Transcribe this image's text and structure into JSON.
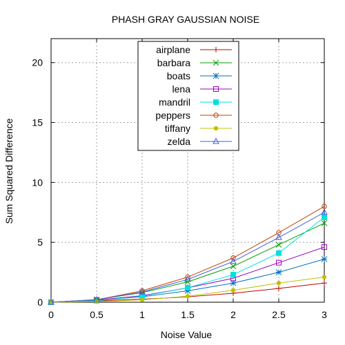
{
  "chart_data": {
    "type": "line",
    "title": "PHASH GRAY GAUSSIAN NOISE",
    "xlabel": "Noise Value",
    "ylabel": "Sum Squared Difference",
    "xlim": [
      0,
      3
    ],
    "ylim": [
      0,
      22
    ],
    "x": [
      0,
      0.5,
      1,
      1.5,
      2,
      2.5,
      3
    ],
    "xticks": [
      0,
      0.5,
      1,
      1.5,
      2,
      2.5,
      3
    ],
    "yticks": [
      0,
      5,
      10,
      15,
      20
    ],
    "xtick_labels": [
      "0",
      "0.5",
      "1",
      "1.5",
      "2",
      "2.5",
      "3"
    ],
    "ytick_labels": [
      "0",
      "5",
      "10",
      "15",
      "20"
    ],
    "grid": true,
    "legend_position": "top-center",
    "series": [
      {
        "name": "airplane",
        "color": "#c00000",
        "marker": "plus",
        "values": [
          0,
          0.12,
          0.25,
          0.45,
          0.75,
          1.15,
          1.6
        ]
      },
      {
        "name": "barbara",
        "color": "#00a000",
        "marker": "cross",
        "values": [
          0,
          0.22,
          0.8,
          1.7,
          3.0,
          4.8,
          6.6
        ]
      },
      {
        "name": "boats",
        "color": "#0070c0",
        "marker": "star",
        "values": [
          0,
          0.15,
          0.45,
          0.95,
          1.6,
          2.5,
          3.6
        ]
      },
      {
        "name": "lena",
        "color": "#a000c0",
        "marker": "square",
        "values": [
          0,
          0.18,
          0.55,
          1.2,
          2.0,
          3.3,
          4.6
        ]
      },
      {
        "name": "mandril",
        "color": "#00e0e0",
        "marker": "filled-square",
        "values": [
          0,
          0.12,
          0.5,
          1.2,
          2.3,
          4.1,
          7.1
        ]
      },
      {
        "name": "peppers",
        "color": "#c04000",
        "marker": "circle",
        "values": [
          0,
          0.2,
          0.95,
          2.1,
          3.7,
          5.8,
          8.0
        ]
      },
      {
        "name": "tiffany",
        "color": "#c0c000",
        "marker": "filled-circle",
        "values": [
          0,
          0.05,
          0.2,
          0.5,
          1.0,
          1.6,
          2.1
        ]
      },
      {
        "name": "zelda",
        "color": "#4060e0",
        "marker": "triangle",
        "values": [
          0,
          0.2,
          0.85,
          1.9,
          3.4,
          5.4,
          7.5
        ]
      }
    ]
  }
}
